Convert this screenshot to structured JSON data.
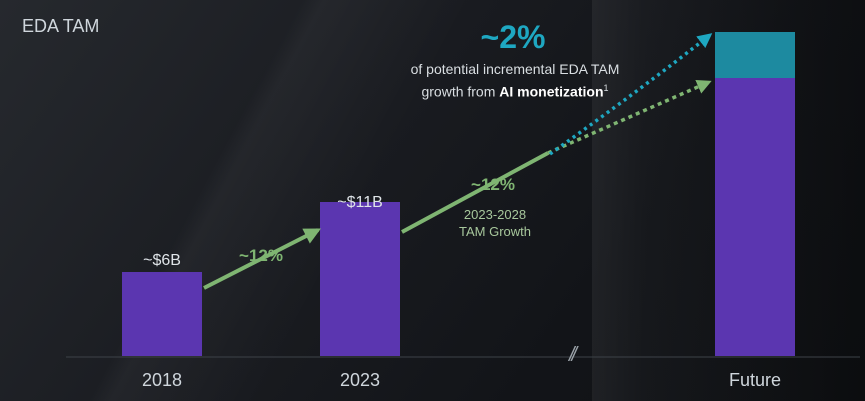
{
  "chart_data": {
    "type": "bar",
    "title": "EDA TAM",
    "categories": [
      "2018",
      "2023",
      "Future"
    ],
    "values": [
      6,
      11,
      null
    ],
    "value_labels": [
      "~$6B",
      "~$11B",
      ""
    ],
    "stacked_future": {
      "base_color": "#5b36b0",
      "increment_color": "#1d8aa0"
    },
    "growth_annotations": [
      {
        "from": "2018",
        "to": "2023",
        "label": "~12%"
      },
      {
        "from": "2023",
        "to": "Future",
        "label": "~12%",
        "sublabel_line1": "2023-2028",
        "sublabel_line2": "TAM Growth"
      }
    ],
    "callout": {
      "value": "~2%",
      "line1": "of potential incremental EDA TAM",
      "line2_prefix": "growth from",
      "line2_bold": "AI monetization",
      "footnote": "1"
    },
    "axis_break": "//",
    "ylim": [
      0,
      24
    ],
    "grid": false,
    "colors": {
      "bar": "#5b36b0",
      "growth_arrow": "#7fb572",
      "ai_arrow": "#1ea7c1",
      "background": "#15171b"
    }
  }
}
